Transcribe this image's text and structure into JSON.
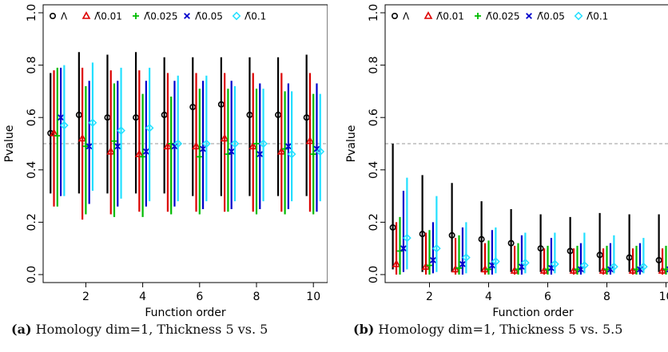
{
  "captions": [
    {
      "label": "(a)",
      "text": "Homology dim=1, Thickness 5 vs. 5"
    },
    {
      "label": "(b)",
      "text": "Homology dim=1, Thickness 5 vs. 5.5"
    }
  ],
  "chart_data": [
    {
      "type": "scatter",
      "panel": "a",
      "xlabel": "Function order",
      "ylabel": "Pvalue",
      "xlim": [
        0.5,
        10.5
      ],
      "ylim": [
        0,
        1.0
      ],
      "x_ticks": [
        2,
        4,
        6,
        8,
        10
      ],
      "y_ticks": [
        0.0,
        0.2,
        0.4,
        0.6,
        0.8,
        1.0
      ],
      "reference_line": 0.5,
      "legend": {
        "placement": "top",
        "orientation": "horizontal"
      },
      "series": [
        {
          "name": "Λ",
          "symbol": "circle",
          "color": "#000000",
          "offset": -0.24,
          "median": [
            0.54,
            0.61,
            0.6,
            0.6,
            0.61,
            0.64,
            0.65,
            0.61,
            0.61,
            0.6
          ],
          "low": [
            0.31,
            0.31,
            0.31,
            0.31,
            0.31,
            0.3,
            0.3,
            0.3,
            0.3,
            0.3
          ],
          "high": [
            0.77,
            0.85,
            0.84,
            0.85,
            0.83,
            0.83,
            0.83,
            0.83,
            0.83,
            0.84
          ]
        },
        {
          "name": "Λ̃0.01",
          "symbol": "triangle",
          "color": "#dd0000",
          "offset": -0.12,
          "median": [
            0.54,
            0.52,
            0.47,
            0.46,
            0.49,
            0.49,
            0.52,
            0.49,
            0.47,
            0.51
          ],
          "low": [
            0.26,
            0.21,
            0.23,
            0.24,
            0.24,
            0.24,
            0.24,
            0.24,
            0.24,
            0.24
          ],
          "high": [
            0.78,
            0.79,
            0.78,
            0.78,
            0.77,
            0.77,
            0.77,
            0.77,
            0.77,
            0.77
          ]
        },
        {
          "name": "Λ̃0.025",
          "symbol": "plus",
          "color": "#00bb00",
          "offset": 0.0,
          "median": [
            0.53,
            0.49,
            0.51,
            0.45,
            0.5,
            0.45,
            0.46,
            0.5,
            0.48,
            0.46
          ],
          "low": [
            0.26,
            0.23,
            0.22,
            0.22,
            0.23,
            0.23,
            0.24,
            0.23,
            0.23,
            0.23
          ],
          "high": [
            0.79,
            0.72,
            0.73,
            0.69,
            0.68,
            0.71,
            0.71,
            0.71,
            0.7,
            0.69
          ]
        },
        {
          "name": "Λ̃0.05",
          "symbol": "cross",
          "color": "#0000cc",
          "offset": 0.12,
          "median": [
            0.6,
            0.49,
            0.49,
            0.47,
            0.49,
            0.48,
            0.47,
            0.46,
            0.49,
            0.48
          ],
          "low": [
            0.3,
            0.27,
            0.26,
            0.26,
            0.26,
            0.25,
            0.25,
            0.25,
            0.25,
            0.24
          ],
          "high": [
            0.79,
            0.74,
            0.74,
            0.74,
            0.74,
            0.74,
            0.74,
            0.73,
            0.73,
            0.73
          ]
        },
        {
          "name": "Λ̃0.1",
          "symbol": "diamond",
          "color": "#22e0ff",
          "offset": 0.24,
          "median": [
            0.57,
            0.58,
            0.55,
            0.56,
            0.5,
            0.5,
            0.5,
            0.5,
            0.46,
            0.47
          ],
          "low": [
            0.3,
            0.32,
            0.29,
            0.28,
            0.28,
            0.28,
            0.28,
            0.28,
            0.28,
            0.28
          ],
          "high": [
            0.8,
            0.81,
            0.79,
            0.79,
            0.76,
            0.76,
            0.72,
            0.71,
            0.7,
            0.69
          ]
        }
      ]
    },
    {
      "type": "scatter",
      "panel": "b",
      "xlabel": "Function order",
      "ylabel": "Pvalue",
      "xlim": [
        0.5,
        10.5
      ],
      "ylim": [
        0,
        1.0
      ],
      "x_ticks": [
        2,
        4,
        6,
        8,
        10
      ],
      "y_ticks": [
        0.0,
        0.2,
        0.4,
        0.6,
        0.8,
        1.0
      ],
      "reference_line": 0.5,
      "legend": {
        "placement": "top",
        "orientation": "horizontal"
      },
      "series": [
        {
          "name": "Λ",
          "symbol": "circle",
          "color": "#000000",
          "offset": -0.24,
          "median": [
            0.18,
            0.155,
            0.15,
            0.135,
            0.12,
            0.1,
            0.09,
            0.075,
            0.065,
            0.055
          ],
          "low": [
            0.02,
            0.01,
            0.01,
            0.01,
            0.01,
            0.01,
            0.01,
            0.01,
            0.01,
            0.01
          ],
          "high": [
            0.5,
            0.38,
            0.35,
            0.28,
            0.25,
            0.23,
            0.22,
            0.235,
            0.23,
            0.23
          ]
        },
        {
          "name": "Λ̃0.01",
          "symbol": "triangle",
          "color": "#dd0000",
          "offset": -0.12,
          "median": [
            0.04,
            0.03,
            0.02,
            0.02,
            0.015,
            0.015,
            0.015,
            0.015,
            0.015,
            0.015
          ],
          "low": [
            0.0,
            0.0,
            0.0,
            0.0,
            0.0,
            0.0,
            0.0,
            0.0,
            0.0,
            0.0
          ],
          "high": [
            0.2,
            0.16,
            0.14,
            0.12,
            0.11,
            0.1,
            0.1,
            0.1,
            0.1,
            0.1
          ]
        },
        {
          "name": "Λ̃0.025",
          "symbol": "plus",
          "color": "#00bb00",
          "offset": 0.0,
          "median": [
            0.09,
            0.035,
            0.025,
            0.02,
            0.02,
            0.02,
            0.02,
            0.02,
            0.02,
            0.02
          ],
          "low": [
            0.0,
            0.0,
            0.0,
            0.0,
            0.0,
            0.0,
            0.0,
            0.0,
            0.0,
            0.0
          ],
          "high": [
            0.22,
            0.17,
            0.15,
            0.13,
            0.12,
            0.11,
            0.11,
            0.11,
            0.11,
            0.11
          ]
        },
        {
          "name": "Λ̃0.05",
          "symbol": "cross",
          "color": "#0000cc",
          "offset": 0.12,
          "median": [
            0.1,
            0.055,
            0.04,
            0.035,
            0.03,
            0.025,
            0.02,
            0.02,
            0.02,
            0.02
          ],
          "low": [
            0.01,
            0.005,
            0.0,
            0.0,
            0.0,
            0.0,
            0.0,
            0.0,
            0.0,
            0.0
          ],
          "high": [
            0.32,
            0.2,
            0.18,
            0.17,
            0.15,
            0.14,
            0.12,
            0.12,
            0.12,
            0.11
          ]
        },
        {
          "name": "Λ̃0.1",
          "symbol": "diamond",
          "color": "#22e0ff",
          "offset": 0.24,
          "median": [
            0.14,
            0.1,
            0.065,
            0.05,
            0.045,
            0.04,
            0.035,
            0.03,
            0.03,
            0.025
          ],
          "low": [
            0.02,
            0.01,
            0.005,
            0.005,
            0.005,
            0.005,
            0.005,
            0.005,
            0.005,
            0.005
          ],
          "high": [
            0.37,
            0.3,
            0.2,
            0.18,
            0.16,
            0.16,
            0.16,
            0.15,
            0.14,
            0.14
          ]
        }
      ]
    }
  ]
}
